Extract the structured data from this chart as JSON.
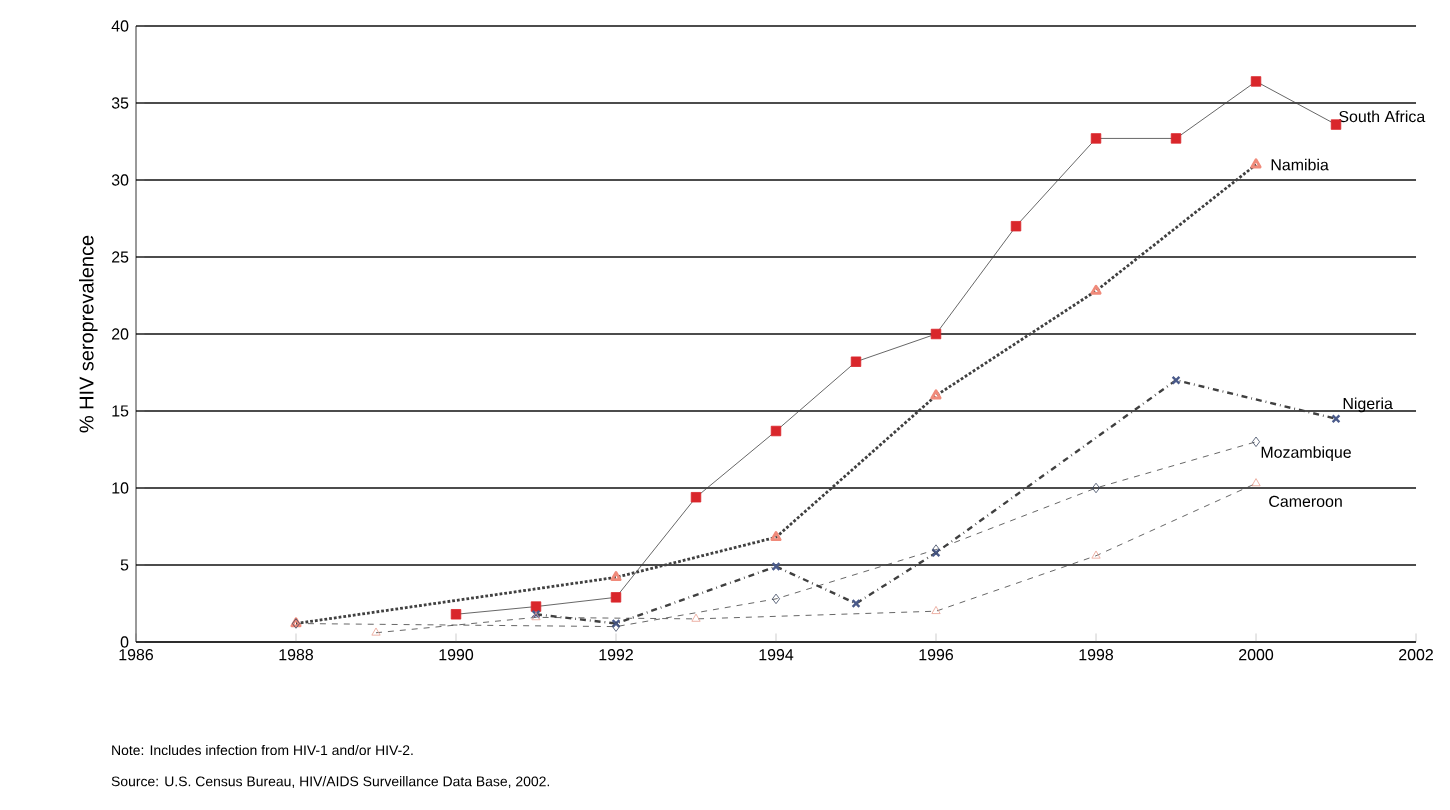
{
  "chart_data": {
    "type": "line",
    "ylabel": "% HIV seroprevalence",
    "xlim": [
      1986,
      2002
    ],
    "xticks": [
      1986,
      1988,
      1990,
      1992,
      1994,
      1996,
      1998,
      2000,
      2002
    ],
    "ylim": [
      0,
      40
    ],
    "yticks": [
      0,
      5,
      10,
      15,
      20,
      25,
      30,
      35,
      40
    ],
    "grid": "y",
    "legend": false,
    "series": [
      {
        "name": "South Africa",
        "color": "#d9262b",
        "marker": "square",
        "line_style": "solid",
        "x": [
          1990,
          1991,
          1992,
          1993,
          1994,
          1995,
          1996,
          1997,
          1998,
          1999,
          2000,
          2001
        ],
        "values": [
          1.8,
          2.3,
          2.9,
          9.4,
          13.7,
          18.2,
          20,
          27,
          32.7,
          32.7,
          36.4,
          33.6
        ]
      },
      {
        "name": "Namibia",
        "color": "#f08a7a",
        "marker": "triangle",
        "line_style": "dotted",
        "x": [
          1988,
          1992,
          1994,
          1996,
          1998,
          2000
        ],
        "values": [
          1.2,
          4.2,
          6.8,
          16,
          22.8,
          31
        ]
      },
      {
        "name": "Nigeria",
        "color": "#4a5a8a",
        "marker": "cross",
        "line_style": "dashdot",
        "x": [
          1991,
          1992,
          1994,
          1995,
          1996,
          1999,
          2001
        ],
        "values": [
          1.8,
          1.2,
          4.9,
          2.5,
          5.8,
          17,
          14.5
        ]
      },
      {
        "name": "Mozambique",
        "color": "#3b4660",
        "marker": "diamond",
        "line_style": "dashed",
        "x": [
          1988,
          1992,
          1994,
          1996,
          1998,
          2000
        ],
        "values": [
          1.2,
          1.0,
          2.8,
          6.0,
          10,
          13
        ]
      },
      {
        "name": "Cameroon",
        "color": "#e8a090",
        "marker": "triangle",
        "line_style": "dashed",
        "x": [
          1989,
          1991,
          1993,
          1996,
          1998,
          2000
        ],
        "values": [
          0.6,
          1.6,
          1.5,
          2.0,
          5.6,
          10.3
        ]
      }
    ],
    "annotations": [
      "Note: Includes infection from HIV-1 and/or HIV-2.",
      "Source: U.S. Census Bureau, HIV/AIDS Surveillance Data Base, 2002."
    ]
  }
}
